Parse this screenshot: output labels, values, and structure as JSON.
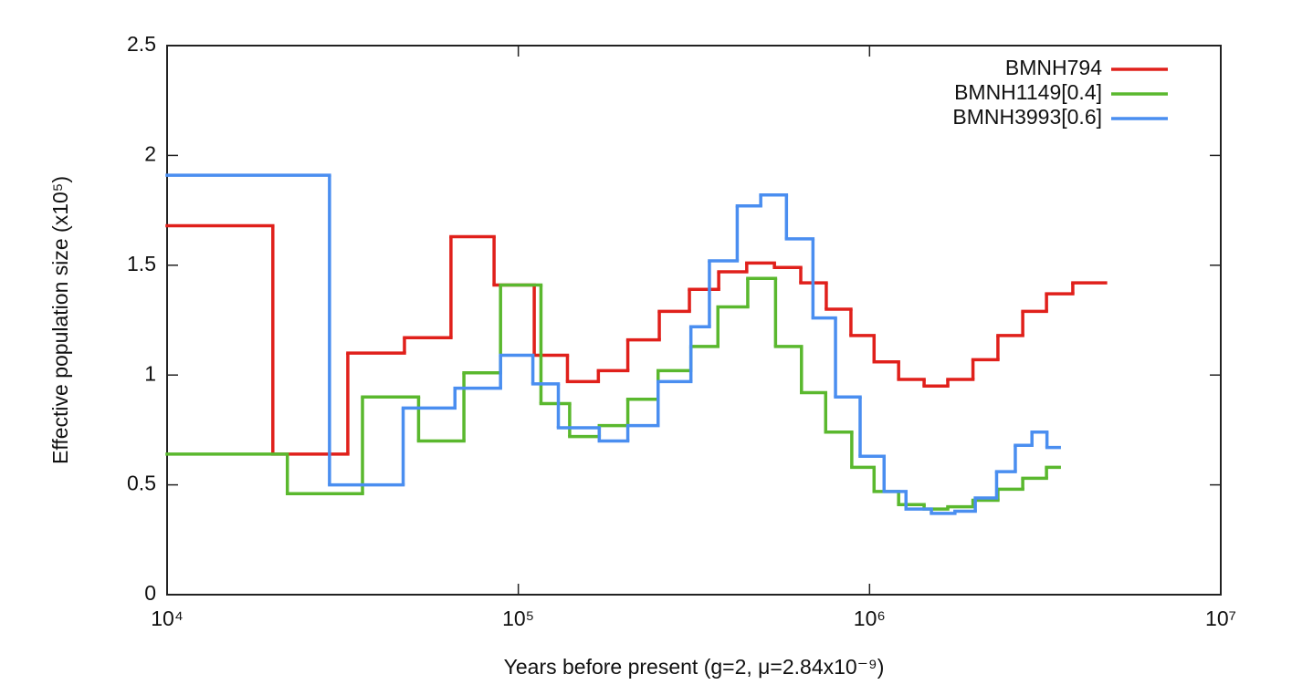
{
  "chart_data": {
    "type": "step",
    "x_label": "Years before present (g=2, μ=2.84x10⁻⁹)",
    "y_label": "Effective population size (x10⁵)",
    "xscale": "log",
    "xlim": [
      10000,
      10000000
    ],
    "xticks": [
      {
        "value": 10000,
        "label": "10⁴"
      },
      {
        "value": 100000,
        "label": "10⁵"
      },
      {
        "value": 1000000,
        "label": "10⁶"
      },
      {
        "value": 10000000,
        "label": "10⁷"
      }
    ],
    "ylim": [
      0,
      2.5
    ],
    "yticks": [
      0,
      0.5,
      1,
      1.5,
      2,
      2.5
    ],
    "legend": "top-right",
    "series": [
      {
        "name": "BMNH794",
        "color": "#e0201b",
        "x": [
          10000,
          20000,
          32700,
          47400,
          64300,
          85300,
          111000,
          138000,
          169000,
          205000,
          252000,
          307000,
          372000,
          447000,
          536000,
          637000,
          753000,
          885000,
          1030000,
          1210000,
          1430000,
          1670000,
          1970000,
          2320000,
          2730000,
          3190000,
          3790000,
          4700000
        ],
        "values": [
          1.68,
          0.64,
          1.1,
          1.17,
          1.63,
          1.41,
          1.09,
          0.97,
          1.02,
          1.16,
          1.29,
          1.39,
          1.47,
          1.51,
          1.49,
          1.42,
          1.3,
          1.18,
          1.06,
          0.98,
          0.95,
          0.98,
          1.07,
          1.18,
          1.29,
          1.37,
          1.42,
          1.42
        ]
      },
      {
        "name": "BMNH1149[0.4]",
        "color": "#5ab82e",
        "x": [
          10000,
          22000,
          36000,
          52000,
          70000,
          89000,
          116000,
          140000,
          170000,
          205000,
          250000,
          310000,
          370000,
          450000,
          540000,
          640000,
          750000,
          890000,
          1030000,
          1210000,
          1430000,
          1670000,
          1970000,
          2320000,
          2730000,
          3190000,
          3470000
        ],
        "values": [
          0.64,
          0.46,
          0.9,
          0.7,
          1.01,
          1.41,
          0.87,
          0.72,
          0.77,
          0.89,
          1.02,
          1.13,
          1.31,
          1.44,
          1.13,
          0.92,
          0.74,
          0.58,
          0.47,
          0.41,
          0.39,
          0.4,
          0.43,
          0.48,
          0.53,
          0.58,
          0.58
        ]
      },
      {
        "name": "BMNH3993[0.6]",
        "color": "#4a8ef0",
        "x": [
          10000,
          29000,
          47000,
          66000,
          89000,
          110000,
          130000,
          170000,
          205000,
          250000,
          310000,
          350000,
          420000,
          490000,
          580000,
          690000,
          800000,
          940000,
          1100000,
          1270000,
          1500000,
          1750000,
          2000000,
          2300000,
          2600000,
          2900000,
          3200000,
          3470000
        ],
        "values": [
          1.91,
          0.5,
          0.85,
          0.94,
          1.09,
          0.96,
          0.76,
          0.7,
          0.77,
          0.97,
          1.22,
          1.52,
          1.77,
          1.82,
          1.62,
          1.26,
          0.9,
          0.63,
          0.47,
          0.39,
          0.37,
          0.38,
          0.44,
          0.56,
          0.68,
          0.74,
          0.67,
          0.67
        ]
      }
    ]
  }
}
